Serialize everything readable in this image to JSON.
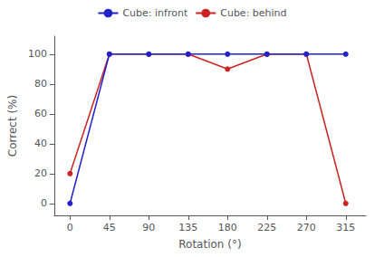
{
  "chart_data": {
    "type": "line",
    "x": [
      0,
      45,
      90,
      135,
      180,
      225,
      270,
      315
    ],
    "series": [
      {
        "name": "Cube: infront",
        "color": "#2222cc",
        "values": [
          0,
          100,
          100,
          100,
          100,
          100,
          100,
          100
        ]
      },
      {
        "name": "Cube: behind",
        "color": "#cc2222",
        "values": [
          20,
          100,
          100,
          100,
          90,
          100,
          100,
          0
        ]
      }
    ],
    "xlabel": "Rotation (°)",
    "ylabel": "Correct (%)",
    "xlim": [
      -18,
      338
    ],
    "ylim": [
      -8,
      112
    ],
    "xticks": [
      0,
      45,
      90,
      135,
      180,
      225,
      270,
      315
    ],
    "yticks": [
      0,
      20,
      40,
      60,
      80,
      100
    ],
    "grid": false,
    "legend": "top",
    "marker": "circle"
  }
}
